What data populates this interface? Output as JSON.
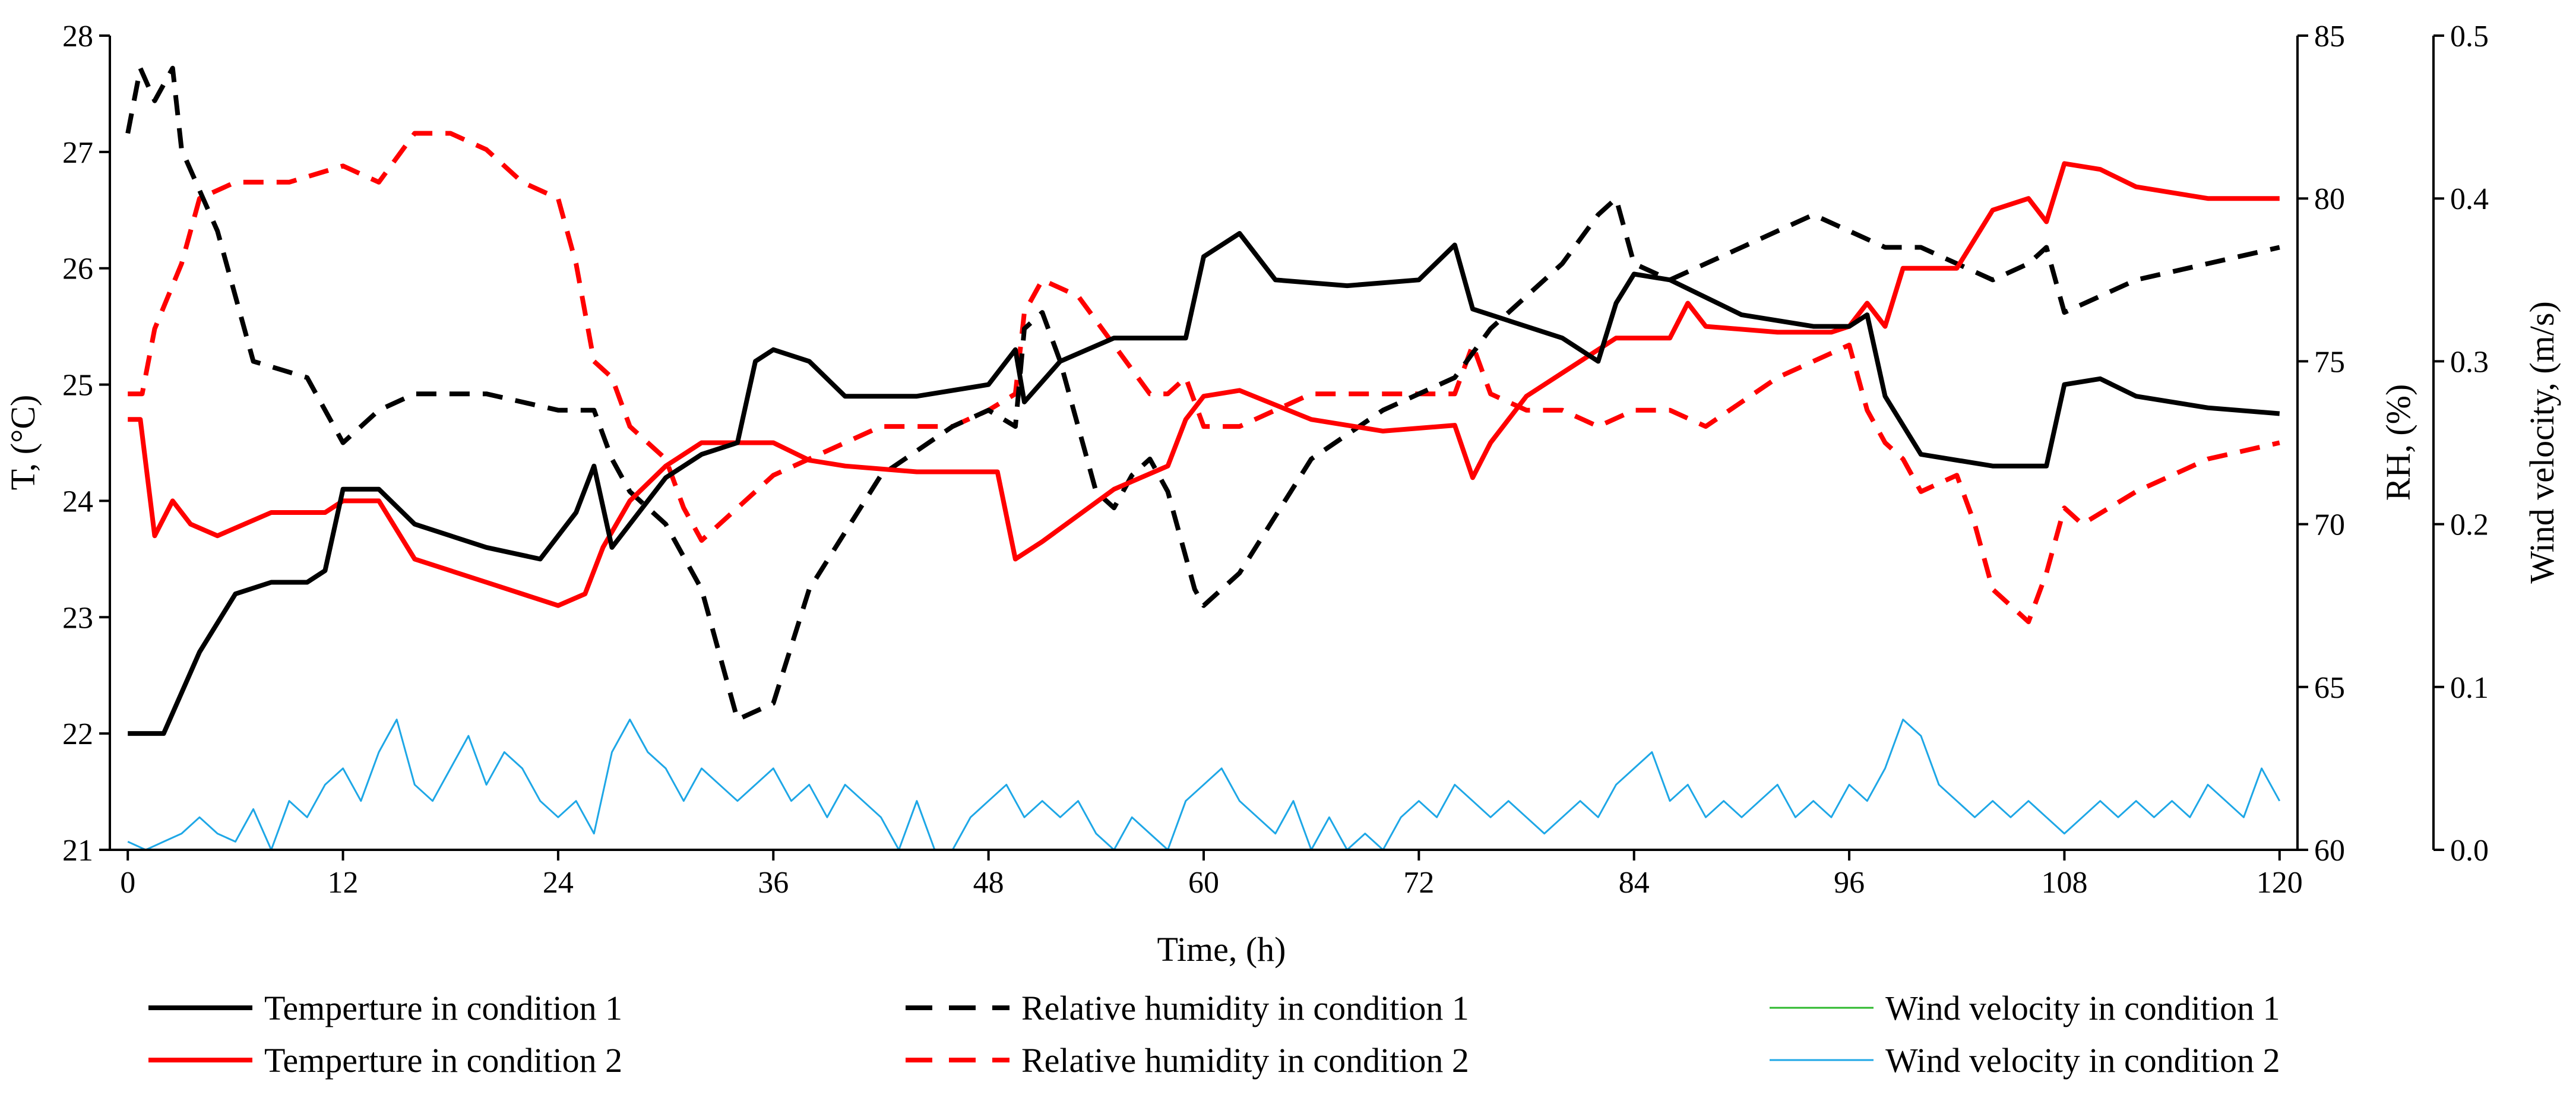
{
  "chart_data": {
    "type": "line",
    "title": "",
    "xlabel": "Time, (h)",
    "ylabel_left": "T, (°C)",
    "ylabel_right1": "RH, (%)",
    "ylabel_right2": "Wind velocity, (m/s)",
    "xlim": [
      -1,
      121
    ],
    "ylim_left": [
      21,
      28
    ],
    "ylim_right1": [
      60,
      85
    ],
    "ylim_right2": [
      0,
      0.5
    ],
    "x_ticks": [
      "0",
      "12",
      "24",
      "36",
      "48",
      "60",
      "72",
      "84",
      "96",
      "108",
      "120"
    ],
    "y_left_ticks": [
      "21",
      "22",
      "23",
      "24",
      "25",
      "26",
      "27",
      "28"
    ],
    "y_right1_ticks": [
      "60",
      "65",
      "70",
      "75",
      "80",
      "85"
    ],
    "y_right2_ticks": [
      "0.0",
      "0.1",
      "0.2",
      "0.3",
      "0.4",
      "0.5"
    ],
    "colors": {
      "condition1": "#000000",
      "condition2": "#ff0000",
      "wind1": "#2db92d",
      "wind2": "#1ea7e6"
    },
    "series": [
      {
        "name": "Temperture in condition 1",
        "axis": "left",
        "style": "solid",
        "color": "#000000",
        "x": [
          0,
          2,
          4,
          6,
          8,
          10,
          11,
          12,
          14,
          16,
          20,
          23,
          25,
          26,
          27,
          28,
          30,
          32,
          34,
          35,
          36,
          38,
          40,
          44,
          48,
          49.5,
          50,
          52,
          55,
          58,
          59,
          60,
          62,
          64,
          68,
          72,
          74,
          75,
          76,
          80,
          82,
          83,
          84,
          86,
          90,
          94,
          96,
          97,
          98,
          100,
          104,
          107,
          108,
          110,
          112,
          116,
          120
        ],
        "values": [
          22.0,
          22.0,
          22.7,
          23.2,
          23.3,
          23.3,
          23.4,
          24.1,
          24.1,
          23.8,
          23.6,
          23.5,
          23.9,
          24.3,
          23.6,
          23.8,
          24.2,
          24.4,
          24.5,
          25.2,
          25.3,
          25.2,
          24.9,
          24.9,
          25.0,
          25.3,
          24.85,
          25.2,
          25.4,
          25.4,
          25.4,
          26.1,
          26.3,
          25.9,
          25.85,
          25.9,
          26.2,
          25.65,
          25.6,
          25.4,
          25.2,
          25.7,
          25.95,
          25.9,
          25.6,
          25.5,
          25.5,
          25.6,
          24.9,
          24.4,
          24.3,
          24.3,
          25.0,
          25.05,
          24.9,
          24.8,
          24.75
        ]
      },
      {
        "name": "Temperture in condition 2",
        "axis": "left",
        "style": "solid",
        "color": "#ff0000",
        "x": [
          0,
          0.7,
          1.5,
          2.5,
          3.5,
          5,
          8,
          11,
          12,
          14,
          16,
          20,
          24,
          25.5,
          26.5,
          28,
          30,
          32,
          34,
          36,
          38,
          40,
          44,
          48,
          48.5,
          49.5,
          51,
          55,
          58,
          59,
          60,
          62,
          66,
          70,
          74,
          75,
          76,
          78,
          82,
          83,
          86,
          87,
          88,
          92,
          95,
          96,
          97,
          98,
          99,
          102,
          104,
          106,
          107,
          108,
          110,
          112,
          116,
          120
        ],
        "values": [
          24.7,
          24.7,
          23.7,
          24.0,
          23.8,
          23.7,
          23.9,
          23.9,
          24.0,
          24.0,
          23.5,
          23.3,
          23.1,
          23.2,
          23.6,
          24.0,
          24.3,
          24.5,
          24.5,
          24.5,
          24.35,
          24.3,
          24.25,
          24.25,
          24.25,
          23.5,
          23.65,
          24.1,
          24.3,
          24.7,
          24.9,
          24.95,
          24.7,
          24.6,
          24.65,
          24.2,
          24.5,
          24.9,
          25.3,
          25.4,
          25.4,
          25.7,
          25.5,
          25.45,
          25.45,
          25.5,
          25.7,
          25.5,
          26.0,
          26.0,
          26.5,
          26.6,
          26.4,
          26.9,
          26.85,
          26.7,
          26.6,
          26.6
        ]
      },
      {
        "name": "Relative humidity in condition 1",
        "axis": "right1",
        "style": "dashed",
        "color": "#000000",
        "x": [
          0,
          0.7,
          1.5,
          2.5,
          3,
          5,
          7,
          10,
          12,
          14,
          16,
          20,
          24,
          26,
          27,
          28,
          30,
          32,
          34,
          36,
          38,
          42,
          46,
          48,
          49.5,
          50,
          51,
          52,
          54,
          55,
          56,
          57,
          58,
          59.5,
          60,
          62,
          66,
          70,
          74,
          76,
          80,
          82,
          83,
          84,
          86,
          90,
          94,
          96,
          98,
          100,
          102,
          104,
          106,
          107,
          108,
          110,
          112,
          116,
          120
        ],
        "values": [
          82.0,
          84.0,
          83.0,
          84.0,
          81.5,
          79.0,
          75.0,
          74.5,
          72.5,
          73.5,
          74.0,
          74.0,
          73.5,
          73.5,
          72.0,
          71.0,
          70.0,
          68.0,
          64.0,
          64.5,
          68.0,
          71.5,
          73.0,
          73.5,
          73.0,
          76.0,
          76.5,
          75.0,
          71.0,
          70.5,
          71.5,
          72.0,
          71.0,
          68.0,
          67.5,
          68.5,
          72.0,
          73.5,
          74.5,
          76.0,
          78.0,
          79.5,
          80.0,
          78.0,
          77.5,
          78.5,
          79.5,
          79.0,
          78.5,
          78.5,
          78.0,
          77.5,
          78.0,
          78.5,
          76.5,
          77.0,
          77.5,
          78.0,
          78.5
        ]
      },
      {
        "name": "Relative humidity in condition 2",
        "axis": "right1",
        "style": "dashed",
        "color": "#ff0000",
        "x": [
          0,
          0.8,
          1.5,
          3,
          4,
          6,
          9,
          12,
          14,
          16,
          18,
          20,
          22,
          24,
          25,
          26,
          27,
          28,
          30,
          31,
          32,
          33,
          34,
          36,
          38,
          42,
          46,
          48,
          49.5,
          50,
          51,
          53,
          55,
          57,
          58,
          59,
          60,
          62,
          66,
          70,
          74,
          75,
          76,
          78,
          80,
          82,
          84,
          86,
          88,
          92,
          96,
          97,
          98,
          99,
          100,
          102,
          103,
          104,
          105,
          106,
          107,
          108,
          109,
          112,
          116,
          120
        ],
        "values": [
          74.0,
          74.0,
          76.0,
          78.0,
          80.0,
          80.5,
          80.5,
          81.0,
          80.5,
          82.0,
          82.0,
          81.5,
          80.5,
          80.0,
          78.0,
          75.0,
          74.5,
          73.0,
          72.0,
          70.5,
          69.5,
          70.0,
          70.5,
          71.5,
          72.0,
          73.0,
          73.0,
          73.5,
          74.0,
          76.5,
          77.5,
          77.0,
          75.5,
          74.0,
          74.0,
          74.5,
          73.0,
          73.0,
          74.0,
          74.0,
          74.0,
          75.5,
          74.0,
          73.5,
          73.5,
          73.0,
          73.5,
          73.5,
          73.0,
          74.5,
          75.5,
          73.5,
          72.5,
          72.0,
          71.0,
          71.5,
          70.0,
          68.0,
          67.5,
          67.0,
          68.5,
          70.5,
          70.0,
          71.0,
          72.0,
          72.5
        ]
      },
      {
        "name": "Wind velocity in condition 1",
        "axis": "right2",
        "style": "solid",
        "color": "#2db92d",
        "x": [
          0,
          120
        ],
        "values": [
          0.0,
          0.0
        ]
      },
      {
        "name": "Wind velocity in condition 2",
        "axis": "right2",
        "style": "solid",
        "color": "#1ea7e6",
        "x": [
          0,
          1,
          2,
          3,
          4,
          5,
          6,
          7,
          8,
          9,
          10,
          11,
          12,
          13,
          14,
          15,
          16,
          17,
          18,
          19,
          20,
          21,
          22,
          23,
          24,
          25,
          26,
          27,
          28,
          29,
          30,
          31,
          32,
          33,
          34,
          35,
          36,
          37,
          38,
          39,
          40,
          41,
          42,
          43,
          44,
          45,
          46,
          47,
          48,
          49,
          50,
          51,
          52,
          53,
          54,
          55,
          56,
          57,
          58,
          59,
          60,
          61,
          62,
          63,
          64,
          65,
          66,
          67,
          68,
          69,
          70,
          71,
          72,
          73,
          74,
          75,
          76,
          77,
          78,
          79,
          80,
          81,
          82,
          83,
          84,
          85,
          86,
          87,
          88,
          89,
          90,
          91,
          92,
          93,
          94,
          95,
          96,
          97,
          98,
          99,
          100,
          101,
          102,
          103,
          104,
          105,
          106,
          107,
          108,
          109,
          110,
          111,
          112,
          113,
          114,
          115,
          116,
          117,
          118,
          119,
          120
        ],
        "values": [
          0.005,
          0.0,
          0.005,
          0.01,
          0.02,
          0.01,
          0.005,
          0.025,
          0.0,
          0.03,
          0.02,
          0.04,
          0.05,
          0.03,
          0.06,
          0.08,
          0.04,
          0.03,
          0.05,
          0.07,
          0.04,
          0.06,
          0.05,
          0.03,
          0.02,
          0.03,
          0.01,
          0.06,
          0.08,
          0.06,
          0.05,
          0.03,
          0.05,
          0.04,
          0.03,
          0.04,
          0.05,
          0.03,
          0.04,
          0.02,
          0.04,
          0.03,
          0.02,
          0.0,
          0.03,
          0.0,
          0.0,
          0.02,
          0.03,
          0.04,
          0.02,
          0.03,
          0.02,
          0.03,
          0.01,
          0.0,
          0.02,
          0.01,
          0.0,
          0.03,
          0.04,
          0.05,
          0.03,
          0.02,
          0.01,
          0.03,
          0.0,
          0.02,
          0.0,
          0.01,
          0.0,
          0.02,
          0.03,
          0.02,
          0.04,
          0.03,
          0.02,
          0.03,
          0.02,
          0.01,
          0.02,
          0.03,
          0.02,
          0.04,
          0.05,
          0.06,
          0.03,
          0.04,
          0.02,
          0.03,
          0.02,
          0.03,
          0.04,
          0.02,
          0.03,
          0.02,
          0.04,
          0.03,
          0.05,
          0.08,
          0.07,
          0.04,
          0.03,
          0.02,
          0.03,
          0.02,
          0.03,
          0.02,
          0.01,
          0.02,
          0.03,
          0.02,
          0.03,
          0.02,
          0.03,
          0.02,
          0.04,
          0.03,
          0.02,
          0.05,
          0.03
        ]
      }
    ],
    "legend": [
      {
        "label": "Temperture in condition 1",
        "color": "#000000",
        "style": "solid"
      },
      {
        "label": "Relative humidity in condition 1",
        "color": "#000000",
        "style": "dashed"
      },
      {
        "label": "Wind velocity in condition 1",
        "color": "#2db92d",
        "style": "solid-thin"
      },
      {
        "label": "Temperture in condition 2",
        "color": "#ff0000",
        "style": "solid"
      },
      {
        "label": "Relative humidity in condition 2",
        "color": "#ff0000",
        "style": "dashed"
      },
      {
        "label": "Wind velocity in condition 2",
        "color": "#1ea7e6",
        "style": "solid-thin"
      }
    ],
    "legend_position": "bottom"
  }
}
